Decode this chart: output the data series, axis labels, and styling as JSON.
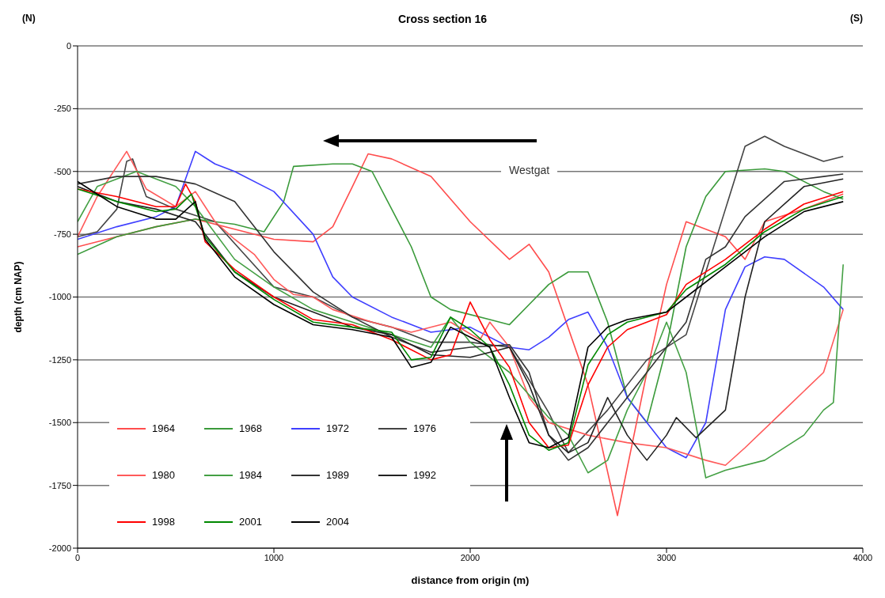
{
  "chart_data": {
    "type": "line",
    "title": "Cross section 16",
    "xlabel": "distance from origin (m)",
    "ylabel": "depth (cm NAP)",
    "xlim": [
      0,
      4000
    ],
    "xticks": [
      0,
      1000,
      2000,
      3000,
      4000
    ],
    "ylim": [
      -2000,
      0
    ],
    "yticks": [
      -2000,
      -1750,
      -1500,
      -1250,
      -1000,
      -750,
      -500,
      -250,
      0
    ],
    "grid": "y",
    "legend": "bottom left",
    "marker": "none",
    "line_style": "solid",
    "annotations": [
      "(N)",
      "(S)",
      "Westgat"
    ],
    "series": [
      {
        "name": "1964",
        "color": "#ff4d4d",
        "x": [
          0,
          200,
          400,
          600,
          800,
          1000,
          1200,
          1300,
          1400,
          1480,
          1600,
          1800,
          2000,
          2200,
          2300,
          2400,
          2600,
          2750,
          2900,
          3000,
          3100,
          3200,
          3300,
          3400,
          3500,
          3700,
          3900
        ],
        "values": [
          -800,
          -760,
          -720,
          -690,
          -730,
          -770,
          -780,
          -720,
          -560,
          -430,
          -450,
          -520,
          -700,
          -850,
          -790,
          -900,
          -1350,
          -1870,
          -1300,
          -950,
          -700,
          -730,
          -760,
          -850,
          -700,
          -650,
          -590
        ]
      },
      {
        "name": "1968",
        "color": "#3a9a3a",
        "x": [
          0,
          200,
          400,
          600,
          800,
          950,
          1050,
          1100,
          1300,
          1400,
          1500,
          1700,
          1800,
          1900,
          2100,
          2200,
          2300,
          2400,
          2500,
          2600,
          2700,
          2800,
          2900,
          3000,
          3100,
          3200,
          3300,
          3500,
          3600,
          3800,
          3900
        ],
        "values": [
          -830,
          -760,
          -720,
          -690,
          -710,
          -740,
          -620,
          -480,
          -470,
          -470,
          -500,
          -800,
          -1000,
          -1050,
          -1090,
          -1110,
          -1030,
          -950,
          -900,
          -900,
          -1100,
          -1400,
          -1500,
          -1200,
          -800,
          -600,
          -500,
          -490,
          -500,
          -580,
          -610
        ]
      },
      {
        "name": "1972",
        "color": "#3f3fff",
        "x": [
          0,
          200,
          400,
          500,
          600,
          700,
          800,
          1000,
          1200,
          1300,
          1400,
          1600,
          1800,
          2000,
          2200,
          2300,
          2400,
          2500,
          2600,
          2700,
          2800,
          3000,
          3100,
          3200,
          3300,
          3400,
          3500,
          3600,
          3800,
          3900
        ],
        "values": [
          -770,
          -720,
          -680,
          -640,
          -420,
          -470,
          -500,
          -580,
          -750,
          -920,
          -1000,
          -1080,
          -1140,
          -1120,
          -1200,
          -1210,
          -1160,
          -1090,
          -1060,
          -1200,
          -1400,
          -1600,
          -1640,
          -1500,
          -1050,
          -880,
          -840,
          -850,
          -960,
          -1050
        ]
      },
      {
        "name": "1976",
        "color": "#444444",
        "x": [
          0,
          100,
          200,
          250,
          280,
          350,
          500,
          700,
          1000,
          1200,
          1400,
          1600,
          1800,
          2000,
          2200,
          2400,
          2500,
          2700,
          2900,
          3100,
          3200,
          3300,
          3400,
          3500,
          3600,
          3800,
          3900
        ],
        "values": [
          -760,
          -740,
          -650,
          -460,
          -450,
          -600,
          -650,
          -700,
          -960,
          -1000,
          -1080,
          -1120,
          -1180,
          -1180,
          -1200,
          -1460,
          -1620,
          -1450,
          -1250,
          -1150,
          -900,
          -650,
          -400,
          -360,
          -400,
          -460,
          -440
        ]
      },
      {
        "name": "1980",
        "color": "#ff5a5a",
        "x": [
          0,
          100,
          250,
          350,
          500,
          600,
          700,
          800,
          900,
          1000,
          1100,
          1200,
          1300,
          1500,
          1700,
          1900,
          2050,
          2100,
          2200,
          2300,
          2400,
          2600,
          2800,
          3000,
          3200,
          3300,
          3400,
          3600,
          3800,
          3900
        ],
        "values": [
          -760,
          -600,
          -420,
          -570,
          -640,
          -580,
          -700,
          -770,
          -830,
          -930,
          -990,
          -1000,
          -1050,
          -1100,
          -1140,
          -1100,
          -1170,
          -1100,
          -1200,
          -1400,
          -1500,
          -1550,
          -1580,
          -1600,
          -1650,
          -1670,
          -1600,
          -1450,
          -1300,
          -1050
        ]
      },
      {
        "name": "1984",
        "color": "#44a044",
        "x": [
          0,
          100,
          300,
          500,
          600,
          800,
          1000,
          1200,
          1400,
          1600,
          1800,
          1900,
          2000,
          2200,
          2400,
          2500,
          2600,
          2700,
          2800,
          2900,
          3000,
          3100,
          3200,
          3300,
          3500,
          3700,
          3800,
          3850,
          3900
        ],
        "values": [
          -700,
          -560,
          -500,
          -560,
          -640,
          -850,
          -960,
          -1050,
          -1100,
          -1150,
          -1200,
          -1080,
          -1180,
          -1300,
          -1480,
          -1550,
          -1700,
          -1650,
          -1450,
          -1300,
          -1100,
          -1300,
          -1720,
          -1690,
          -1650,
          -1550,
          -1450,
          -1420,
          -870
        ]
      },
      {
        "name": "1989",
        "color": "#333333",
        "x": [
          0,
          200,
          400,
          600,
          800,
          1000,
          1200,
          1400,
          1600,
          1800,
          2000,
          2200,
          2300,
          2400,
          2500,
          2600,
          2700,
          2900,
          3100,
          3200,
          3300,
          3400,
          3600,
          3800,
          3900
        ],
        "values": [
          -550,
          -520,
          -520,
          -550,
          -620,
          -820,
          -980,
          -1080,
          -1160,
          -1220,
          -1200,
          -1190,
          -1300,
          -1550,
          -1650,
          -1600,
          -1500,
          -1300,
          -1100,
          -850,
          -800,
          -680,
          -540,
          -520,
          -510
        ]
      },
      {
        "name": "1992",
        "color": "#222222",
        "x": [
          0,
          200,
          400,
          600,
          800,
          1000,
          1200,
          1400,
          1600,
          1800,
          2000,
          2200,
          2300,
          2400,
          2500,
          2600,
          2700,
          2800,
          2900,
          3000,
          3050,
          3150,
          3300,
          3400,
          3500,
          3700,
          3900
        ],
        "values": [
          -560,
          -620,
          -650,
          -700,
          -900,
          -1000,
          -1060,
          -1120,
          -1150,
          -1230,
          -1240,
          -1200,
          -1350,
          -1550,
          -1620,
          -1580,
          -1400,
          -1550,
          -1650,
          -1550,
          -1480,
          -1560,
          -1450,
          -1000,
          -700,
          -560,
          -530
        ]
      },
      {
        "name": "1998",
        "color": "#ff0000",
        "x": [
          0,
          200,
          400,
          500,
          550,
          600,
          650,
          800,
          1000,
          1200,
          1400,
          1600,
          1800,
          1900,
          2000,
          2100,
          2200,
          2300,
          2400,
          2500,
          2600,
          2700,
          2800,
          3000,
          3100,
          3300,
          3500,
          3700,
          3900
        ],
        "values": [
          -570,
          -600,
          -640,
          -640,
          -550,
          -620,
          -780,
          -890,
          -1000,
          -1090,
          -1110,
          -1170,
          -1250,
          -1230,
          -1020,
          -1170,
          -1280,
          -1500,
          -1600,
          -1590,
          -1350,
          -1200,
          -1130,
          -1070,
          -950,
          -850,
          -730,
          -630,
          -580
        ]
      },
      {
        "name": "2001",
        "color": "#008800",
        "x": [
          0,
          200,
          400,
          500,
          580,
          650,
          800,
          1000,
          1200,
          1400,
          1600,
          1700,
          1800,
          1900,
          2000,
          2100,
          2200,
          2300,
          2400,
          2500,
          2600,
          2700,
          2800,
          3000,
          3100,
          3300,
          3500,
          3700,
          3900
        ],
        "values": [
          -570,
          -620,
          -660,
          -650,
          -590,
          -760,
          -900,
          -1010,
          -1100,
          -1120,
          -1140,
          -1250,
          -1240,
          -1080,
          -1130,
          -1200,
          -1350,
          -1550,
          -1610,
          -1580,
          -1270,
          -1150,
          -1100,
          -1060,
          -970,
          -870,
          -740,
          -650,
          -600
        ]
      },
      {
        "name": "2004",
        "color": "#000000",
        "x": [
          0,
          200,
          400,
          500,
          600,
          650,
          800,
          1000,
          1200,
          1400,
          1600,
          1700,
          1800,
          1900,
          2000,
          2100,
          2200,
          2300,
          2400,
          2500,
          2600,
          2700,
          2800,
          3000,
          3100,
          3300,
          3500,
          3700,
          3900
        ],
        "values": [
          -540,
          -640,
          -690,
          -690,
          -620,
          -770,
          -920,
          -1030,
          -1110,
          -1130,
          -1160,
          -1280,
          -1260,
          -1120,
          -1160,
          -1200,
          -1400,
          -1580,
          -1600,
          -1560,
          -1200,
          -1120,
          -1090,
          -1060,
          -1000,
          -880,
          -760,
          -660,
          -620
        ]
      }
    ]
  }
}
